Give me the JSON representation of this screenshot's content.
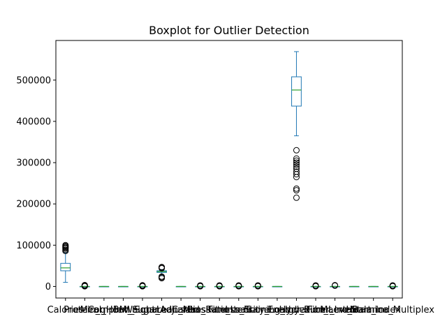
{
  "chart_data": {
    "type": "boxplot",
    "title": "Boxplot for Outlier Detection",
    "xlabel": "",
    "ylabel": "",
    "ylim": [
      -28000,
      596000
    ],
    "yticks": [
      0,
      100000,
      200000,
      300000,
      400000,
      500000
    ],
    "ytick_labels": [
      "0",
      "100000",
      "200000",
      "300000",
      "400000",
      "500000"
    ],
    "grid": false,
    "legend": "none",
    "colors": {
      "box": "#1f77b4",
      "median": "#2ca02c",
      "flier": "#000000"
    },
    "categories": [
      "Calories",
      "Protein_g",
      "Meal_Hour",
      "Complex_Sugar",
      "BMI_Squared",
      "Weight_Adjusted",
      "Lean_Mass",
      "Cardio_Ratio",
      "Pressure_Load",
      "Fitness_Score",
      "Intensity_Load",
      "Training_Index",
      "Energy_Burn",
      "Hydration_Level",
      "Fiber_Intake",
      "Macro_Balance",
      "Heart_Index",
      "Stamina_Multiplex"
    ],
    "boxes": [
      {
        "whislo": 10000,
        "q1": 38000,
        "median": 45000,
        "q3": 56000,
        "whishi": 82000,
        "fliers": [
          86000,
          89000,
          92000,
          94000,
          96000,
          98000,
          100000
        ]
      },
      {
        "whislo": 0,
        "q1": 0,
        "median": 0,
        "q3": 0,
        "whishi": 0,
        "fliers": [
          500,
          1000,
          1800,
          2500,
          3200
        ]
      },
      {
        "whislo": 0,
        "q1": 0,
        "median": 0,
        "q3": 0,
        "whishi": 0,
        "fliers": []
      },
      {
        "whislo": 0,
        "q1": 0,
        "median": 0,
        "q3": 0,
        "whishi": 0,
        "fliers": []
      },
      {
        "whislo": 0,
        "q1": 0,
        "median": 0,
        "q3": 0,
        "whishi": 0,
        "fliers": [
          500,
          1200,
          2000,
          2800
        ]
      },
      {
        "whislo": 26000,
        "q1": 34000,
        "median": 36000,
        "q3": 38000,
        "whishi": 41000,
        "fliers": [
          20000,
          22000,
          24000,
          44000,
          46000,
          47000
        ]
      },
      {
        "whislo": 0,
        "q1": 0,
        "median": 0,
        "q3": 0,
        "whishi": 0,
        "fliers": []
      },
      {
        "whislo": 0,
        "q1": 0,
        "median": 0,
        "q3": 0,
        "whishi": 0,
        "fliers": [
          500,
          1500,
          2500
        ]
      },
      {
        "whislo": 0,
        "q1": 0,
        "median": 0,
        "q3": 0,
        "whishi": 0,
        "fliers": [
          500,
          1500,
          2500
        ]
      },
      {
        "whislo": 0,
        "q1": 0,
        "median": 0,
        "q3": 0,
        "whishi": 0,
        "fliers": [
          500,
          1500,
          2500
        ]
      },
      {
        "whislo": 0,
        "q1": 0,
        "median": 0,
        "q3": 0,
        "whishi": 0,
        "fliers": [
          500,
          1500,
          2500
        ]
      },
      {
        "whislo": 0,
        "q1": 0,
        "median": 0,
        "q3": 0,
        "whishi": 0,
        "fliers": []
      },
      {
        "whislo": 365000,
        "q1": 437000,
        "median": 476000,
        "q3": 508000,
        "whishi": 569000,
        "fliers": [
          215000,
          233000,
          237000,
          265000,
          272000,
          278000,
          285000,
          290000,
          295000,
          300000,
          305000,
          310000,
          330000
        ]
      },
      {
        "whislo": 0,
        "q1": 0,
        "median": 0,
        "q3": 0,
        "whishi": 0,
        "fliers": [
          500,
          1500,
          2500
        ]
      },
      {
        "whislo": 0,
        "q1": 0,
        "median": 0,
        "q3": 0,
        "whishi": 0,
        "fliers": [
          2000,
          3000
        ]
      },
      {
        "whislo": 0,
        "q1": 0,
        "median": 0,
        "q3": 0,
        "whishi": 0,
        "fliers": []
      },
      {
        "whislo": 0,
        "q1": 0,
        "median": 0,
        "q3": 0,
        "whishi": 0,
        "fliers": []
      },
      {
        "whislo": 0,
        "q1": 0,
        "median": 0,
        "q3": 0,
        "whishi": 0,
        "fliers": [
          500,
          1500,
          2500
        ]
      }
    ]
  }
}
